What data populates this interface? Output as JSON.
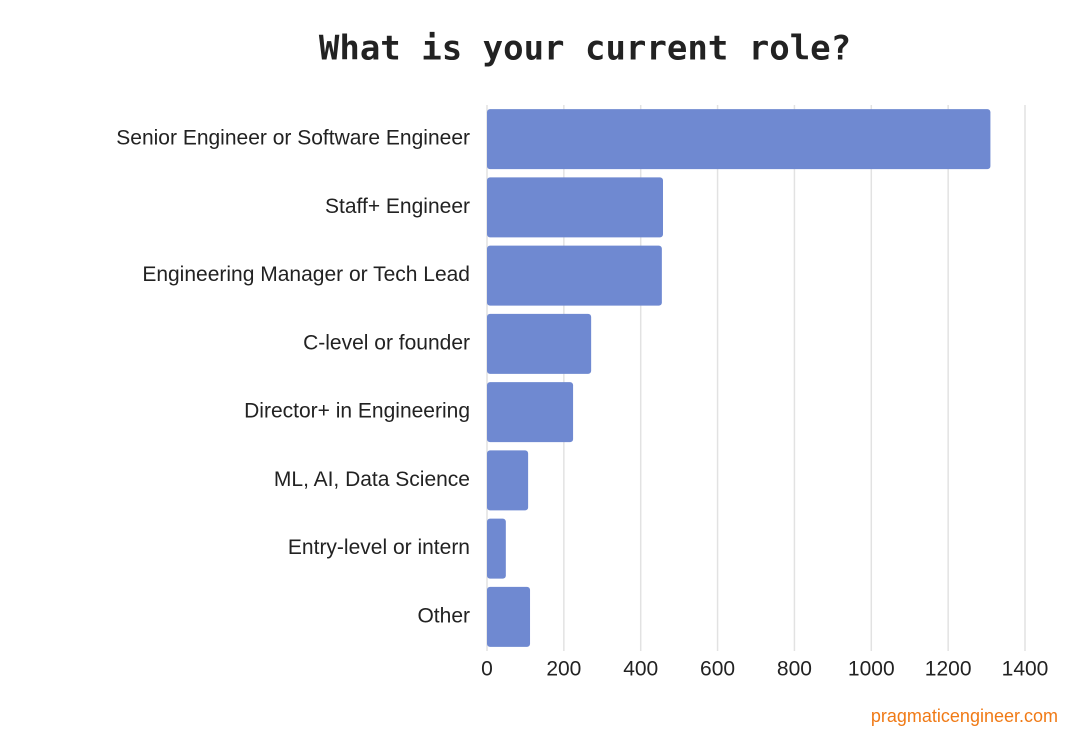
{
  "chart_data": {
    "type": "bar",
    "orientation": "horizontal",
    "title": "What is your current role?",
    "categories": [
      "Senior Engineer or Software Engineer",
      "Staff+ Engineer",
      "Engineering Manager or Tech Lead",
      "C-level or founder",
      "Director+ in Engineering",
      "ML, AI, Data Science",
      "Entry-level or intern",
      "Other"
    ],
    "values": [
      1310,
      458,
      455,
      271,
      224,
      107,
      49,
      112
    ],
    "color": "#6f89d1",
    "xlim": [
      0,
      1400
    ],
    "xticks": [
      0,
      200,
      400,
      600,
      800,
      1000,
      1200,
      1400
    ],
    "grid": true,
    "source": "pragmaticengineer.com"
  }
}
